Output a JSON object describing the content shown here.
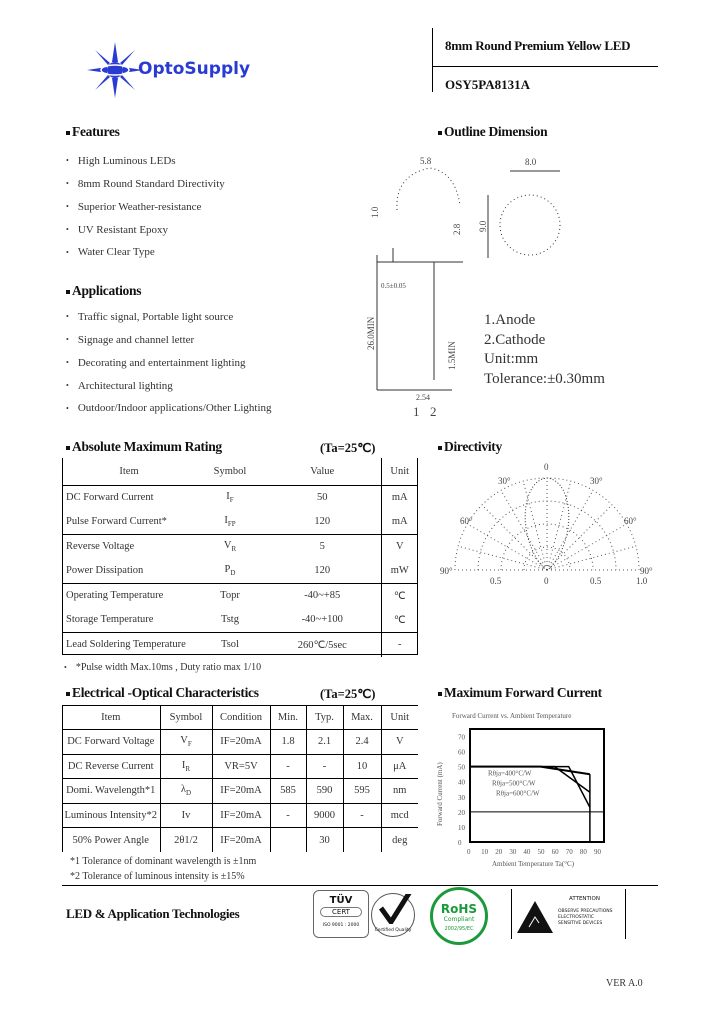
{
  "header": {
    "brand": "OptoSupply",
    "title": "8mm Round Premium Yellow LED",
    "part_number": "OSY5PA8131A",
    "brand_color": "#2a3bd1"
  },
  "features": {
    "heading": "Features",
    "items": [
      "High Luminous LEDs",
      "8mm Round Standard Directivity",
      "Superior Weather-resistance",
      "UV Resistant Epoxy",
      "Water Clear Type"
    ]
  },
  "applications": {
    "heading": "Applications",
    "items": [
      "Traffic signal, Portable light source",
      "Signage and channel letter",
      "Decorating and entertainment lighting",
      "Architectural lighting",
      "Outdoor/Indoor applications/Other Lighting"
    ]
  },
  "outline": {
    "heading": "Outline Dimension",
    "dims": {
      "width_top": "5.8",
      "diameter": "8.0",
      "height": "9.0",
      "dome": "1.0",
      "flange": "2.8",
      "lead_len": "26.0MIN",
      "lead_min": "1.5MIN",
      "lead_w": "0.5±0.05",
      "pitch": "2.54",
      "pin1": "1",
      "pin2": "2"
    },
    "notes": [
      "1.Anode",
      "2.Cathode",
      "Unit:mm",
      "Tolerance:±0.30mm"
    ]
  },
  "abs_max": {
    "heading": "Absolute Maximum Rating",
    "condition": "(Ta=25℃)",
    "columns": [
      "Item",
      "Symbol",
      "Value",
      "Unit"
    ],
    "rows": [
      [
        "DC Forward Current",
        "I",
        "F",
        "50",
        "mA"
      ],
      [
        "Pulse Forward Current*",
        "I",
        "FP",
        "120",
        "mA"
      ],
      [
        "Reverse Voltage",
        "V",
        "R",
        "5",
        "V"
      ],
      [
        "Power Dissipation",
        "P",
        "D",
        "120",
        "mW"
      ],
      [
        "Operating Temperature",
        "Topr",
        "",
        "-40~+85",
        "℃"
      ],
      [
        "Storage Temperature",
        "Tstg",
        "",
        "-40~+100",
        "℃"
      ],
      [
        "Lead Soldering Temperature",
        "Tsol",
        "",
        "260℃/5sec",
        "-"
      ]
    ],
    "footnote": "*Pulse width Max.10ms , Duty ratio max 1/10"
  },
  "directivity": {
    "heading": "Directivity",
    "angle_labels": [
      "0",
      "30°",
      "30°",
      "60°",
      "60°",
      "90°",
      "90°"
    ],
    "scale_labels": [
      "0.5",
      "0",
      "0.5",
      "1.0"
    ]
  },
  "electrical": {
    "heading": "Electrical -Optical Characteristics",
    "condition": "(Ta=25℃)",
    "columns": [
      "Item",
      "Symbol",
      "Condition",
      "Min.",
      "Typ.",
      "Max.",
      "Unit"
    ],
    "rows": [
      [
        "DC Forward Voltage",
        "V",
        "F",
        "IF=20mA",
        "1.8",
        "2.1",
        "2.4",
        "V"
      ],
      [
        "DC Reverse Current",
        "I",
        "R",
        "VR=5V",
        "-",
        "-",
        "10",
        "μA"
      ],
      [
        "Domi. Wavelength*1",
        "λ",
        "D",
        "IF=20mA",
        "585",
        "590",
        "595",
        "nm"
      ],
      [
        "Luminous Intensity*2",
        "Iv",
        "",
        "IF=20mA",
        "-",
        "9000",
        "-",
        "mcd"
      ],
      [
        "50% Power Angle",
        "2θ1/2",
        "",
        "IF=20mA",
        "",
        "30",
        "",
        "deg"
      ]
    ],
    "footnotes": [
      "*1 Tolerance of dominant wavelength is ±1nm",
      "*2 Tolerance of luminous intensity is ±15%"
    ]
  },
  "max_current": {
    "heading": "Maximum Forward Current",
    "chart_title": "Forward Current vs. Ambient Temperature",
    "ylabel": "Forward Current (mA)",
    "xlabel": "Ambient Temperature Ta(°C)",
    "x_ticks": [
      "0",
      "10",
      "20",
      "30",
      "40",
      "50",
      "60",
      "70",
      "80",
      "90"
    ],
    "y_ticks": [
      "0",
      "10",
      "20",
      "30",
      "40",
      "50",
      "60",
      "70"
    ],
    "curves": [
      "Rθja=400°C/W",
      "Rθja=500°C/W",
      "Rθja=600°C/W"
    ]
  },
  "footer": {
    "company": "LED & Application Technologies",
    "tuv": "TÜV",
    "cert": "CERT",
    "iso": "ISO 9001 : 2000",
    "qc": "Certified Quality",
    "rohs": "RoHS",
    "rohs_sub": "Compliant",
    "rohs_ring": "2002/95/EC",
    "attention": "ATTENTION",
    "attention_lines": [
      "OBSERVE PRECAUTIONS",
      "ELECTROSTATIC",
      "SENSITIVE DEVICES"
    ],
    "version": "VER A.0"
  }
}
